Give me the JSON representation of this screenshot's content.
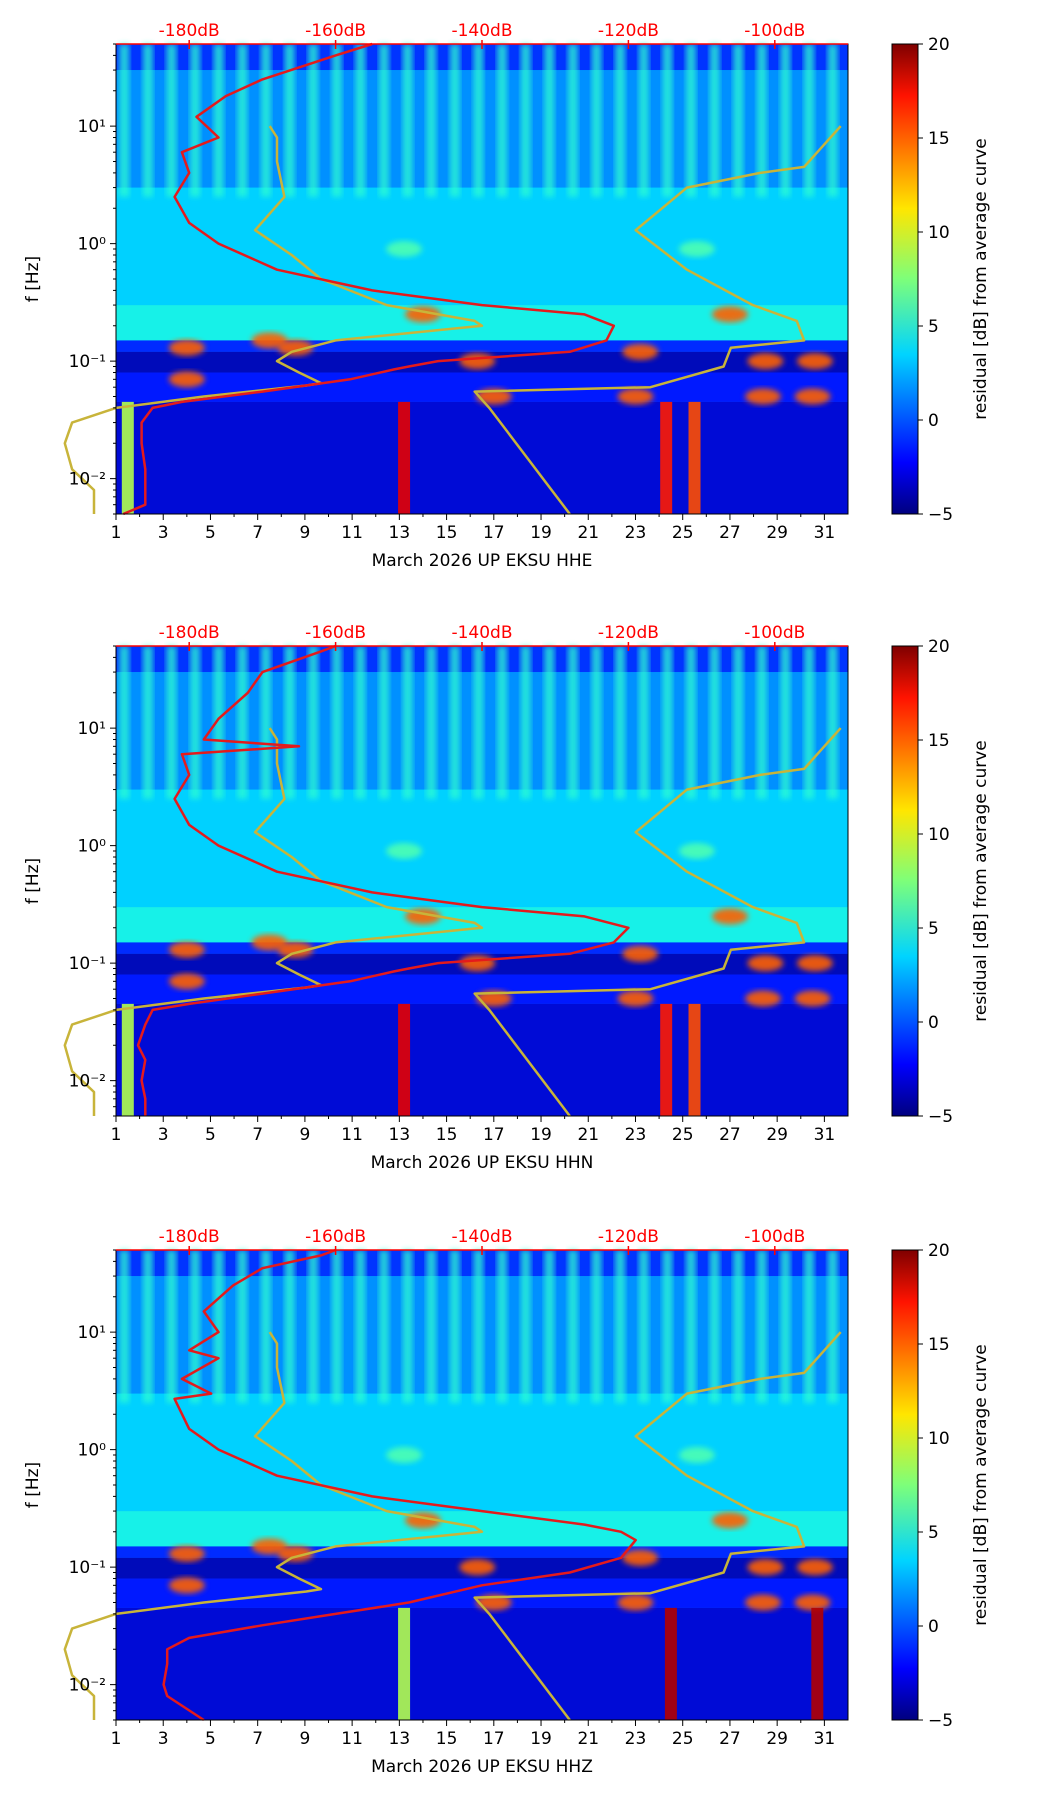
{
  "chart_data": [
    {
      "type": "heatmap",
      "channel": "HHE",
      "xlabel": "March 2026 UP EKSU  HHE",
      "ylabel": "f [Hz]",
      "colorbar_label": "residual [dB] from average curve",
      "x_ticks": [
        "1",
        "3",
        "5",
        "7",
        "9",
        "11",
        "13",
        "15",
        "17",
        "19",
        "21",
        "23",
        "25",
        "27",
        "29",
        "31"
      ],
      "xlim": [
        1,
        32
      ],
      "y_ticks": [
        {
          "value": 0.01,
          "label": "10⁻²"
        },
        {
          "value": 0.1,
          "label": "10⁻¹"
        },
        {
          "value": 1,
          "label": "10⁰"
        },
        {
          "value": 10,
          "label": "10¹"
        }
      ],
      "ylim": [
        0.005,
        50
      ],
      "top_ticks": [
        "-180dB",
        "-160dB",
        "-140dB",
        "-120dB",
        "-100dB"
      ],
      "top_range_db": [
        -190,
        -90
      ],
      "colorbar_ticks": [
        "20",
        "15",
        "10",
        "5",
        "0",
        "−5"
      ],
      "colorbar_range": [
        -5,
        20
      ],
      "red_curve": [
        [
          -189,
          0.005
        ],
        [
          -186,
          0.006
        ],
        [
          -186,
          0.008
        ],
        [
          -186,
          0.012
        ],
        [
          -186.5,
          0.02
        ],
        [
          -186.5,
          0.03
        ],
        [
          -185,
          0.04
        ],
        [
          -181,
          0.045
        ],
        [
          -170,
          0.055
        ],
        [
          -158,
          0.07
        ],
        [
          -152,
          0.085
        ],
        [
          -150,
          0.09
        ],
        [
          -146,
          0.1
        ],
        [
          -128,
          0.12
        ],
        [
          -123,
          0.15
        ],
        [
          -122,
          0.2
        ],
        [
          -126,
          0.25
        ],
        [
          -140,
          0.3
        ],
        [
          -155,
          0.4
        ],
        [
          -168,
          0.6
        ],
        [
          -176,
          1
        ],
        [
          -180,
          1.5
        ],
        [
          -182,
          2.5
        ],
        [
          -180,
          4
        ],
        [
          -181,
          6
        ],
        [
          -176,
          8
        ],
        [
          -179,
          12
        ],
        [
          -175,
          18
        ],
        [
          -170,
          25
        ],
        [
          -160,
          40
        ],
        [
          -155,
          50
        ]
      ],
      "yellow_curve_left_db": [
        [
          -193,
          0.005
        ],
        [
          -193,
          0.008
        ],
        [
          -196,
          0.012
        ],
        [
          -197,
          0.02
        ],
        [
          -196,
          0.03
        ],
        [
          -190,
          0.04
        ],
        [
          -178,
          0.05
        ],
        [
          -164,
          0.062
        ],
        [
          -162,
          0.065
        ],
        [
          -165,
          0.08
        ],
        [
          -168,
          0.1
        ],
        [
          -166,
          0.12
        ],
        [
          -160,
          0.15
        ],
        [
          -140,
          0.2
        ],
        [
          -141,
          0.22
        ],
        [
          -153,
          0.3
        ],
        [
          -162,
          0.5
        ],
        [
          -166,
          0.8
        ],
        [
          -171,
          1.3
        ],
        [
          -167,
          2.5
        ],
        [
          -168,
          5
        ],
        [
          -168,
          8
        ],
        [
          -169,
          10
        ]
      ],
      "yellow_curve_right_db": [
        [
          -128,
          0.005
        ],
        [
          -139,
          0.04
        ],
        [
          -141,
          0.055
        ],
        [
          -117,
          0.06
        ],
        [
          -107,
          0.09
        ],
        [
          -106,
          0.13
        ],
        [
          -96,
          0.15
        ],
        [
          -97,
          0.22
        ],
        [
          -103,
          0.3
        ],
        [
          -112,
          0.6
        ],
        [
          -119,
          1.3
        ],
        [
          -112,
          3
        ],
        [
          -102,
          4
        ],
        [
          -96,
          4.5
        ],
        [
          -91,
          10
        ]
      ]
    },
    {
      "type": "heatmap",
      "channel": "HHN",
      "xlabel": "March 2026 UP EKSU  HHN",
      "ylabel": "f [Hz]",
      "colorbar_label": "residual [dB] from average curve",
      "x_ticks": [
        "1",
        "3",
        "5",
        "7",
        "9",
        "11",
        "13",
        "15",
        "17",
        "19",
        "21",
        "23",
        "25",
        "27",
        "29",
        "31"
      ],
      "xlim": [
        1,
        32
      ],
      "y_ticks": [
        {
          "value": 0.01,
          "label": "10⁻²"
        },
        {
          "value": 0.1,
          "label": "10⁻¹"
        },
        {
          "value": 1,
          "label": "10⁰"
        },
        {
          "value": 10,
          "label": "10¹"
        }
      ],
      "ylim": [
        0.005,
        50
      ],
      "top_ticks": [
        "-180dB",
        "-160dB",
        "-140dB",
        "-120dB",
        "-100dB"
      ],
      "top_range_db": [
        -190,
        -90
      ],
      "colorbar_ticks": [
        "20",
        "15",
        "10",
        "5",
        "0",
        "−5"
      ],
      "colorbar_range": [
        -5,
        20
      ],
      "red_curve": [
        [
          -186,
          0.005
        ],
        [
          -186,
          0.007
        ],
        [
          -186.5,
          0.01
        ],
        [
          -186,
          0.015
        ],
        [
          -187,
          0.02
        ],
        [
          -186,
          0.03
        ],
        [
          -185,
          0.04
        ],
        [
          -180,
          0.045
        ],
        [
          -170,
          0.055
        ],
        [
          -158,
          0.07
        ],
        [
          -152,
          0.085
        ],
        [
          -150,
          0.09
        ],
        [
          -146,
          0.1
        ],
        [
          -128,
          0.12
        ],
        [
          -122,
          0.15
        ],
        [
          -120,
          0.2
        ],
        [
          -126,
          0.25
        ],
        [
          -140,
          0.3
        ],
        [
          -155,
          0.4
        ],
        [
          -168,
          0.6
        ],
        [
          -176,
          1
        ],
        [
          -180,
          1.5
        ],
        [
          -182,
          2.5
        ],
        [
          -180,
          4
        ],
        [
          -181,
          6
        ],
        [
          -165,
          7
        ],
        [
          -178,
          8
        ],
        [
          -176,
          12
        ],
        [
          -172,
          20
        ],
        [
          -170,
          30
        ],
        [
          -162,
          45
        ],
        [
          -160,
          50
        ]
      ],
      "yellow_curve_left_db": [
        [
          -193,
          0.005
        ],
        [
          -193,
          0.008
        ],
        [
          -196,
          0.012
        ],
        [
          -197,
          0.02
        ],
        [
          -196,
          0.03
        ],
        [
          -190,
          0.04
        ],
        [
          -178,
          0.05
        ],
        [
          -164,
          0.062
        ],
        [
          -162,
          0.065
        ],
        [
          -165,
          0.08
        ],
        [
          -168,
          0.1
        ],
        [
          -166,
          0.12
        ],
        [
          -160,
          0.15
        ],
        [
          -140,
          0.2
        ],
        [
          -141,
          0.22
        ],
        [
          -153,
          0.3
        ],
        [
          -162,
          0.5
        ],
        [
          -166,
          0.8
        ],
        [
          -171,
          1.3
        ],
        [
          -167,
          2.5
        ],
        [
          -168,
          5
        ],
        [
          -168,
          8
        ],
        [
          -169,
          10
        ]
      ],
      "yellow_curve_right_db": [
        [
          -128,
          0.005
        ],
        [
          -139,
          0.04
        ],
        [
          -141,
          0.055
        ],
        [
          -117,
          0.06
        ],
        [
          -107,
          0.09
        ],
        [
          -106,
          0.13
        ],
        [
          -96,
          0.15
        ],
        [
          -97,
          0.22
        ],
        [
          -103,
          0.3
        ],
        [
          -112,
          0.6
        ],
        [
          -119,
          1.3
        ],
        [
          -112,
          3
        ],
        [
          -102,
          4
        ],
        [
          -96,
          4.5
        ],
        [
          -91,
          10
        ]
      ]
    },
    {
      "type": "heatmap",
      "channel": "HHZ",
      "xlabel": "March 2026 UP EKSU  HHZ",
      "ylabel": "f [Hz]",
      "colorbar_label": "residual [dB] from average curve",
      "x_ticks": [
        "1",
        "3",
        "5",
        "7",
        "9",
        "11",
        "13",
        "15",
        "17",
        "19",
        "21",
        "23",
        "25",
        "27",
        "29",
        "31"
      ],
      "xlim": [
        1,
        32
      ],
      "y_ticks": [
        {
          "value": 0.01,
          "label": "10⁻²"
        },
        {
          "value": 0.1,
          "label": "10⁻¹"
        },
        {
          "value": 1,
          "label": "10⁰"
        },
        {
          "value": 10,
          "label": "10¹"
        }
      ],
      "ylim": [
        0.005,
        50
      ],
      "top_ticks": [
        "-180dB",
        "-160dB",
        "-140dB",
        "-120dB",
        "-100dB"
      ],
      "top_range_db": [
        -190,
        -90
      ],
      "colorbar_ticks": [
        "20",
        "15",
        "10",
        "5",
        "0",
        "−5"
      ],
      "colorbar_range": [
        -5,
        20
      ],
      "red_curve": [
        [
          -178,
          0.005
        ],
        [
          -183,
          0.008
        ],
        [
          -183.5,
          0.01
        ],
        [
          -183,
          0.015
        ],
        [
          -183,
          0.02
        ],
        [
          -180,
          0.025
        ],
        [
          -170,
          0.032
        ],
        [
          -160,
          0.04
        ],
        [
          -150,
          0.05
        ],
        [
          -140,
          0.07
        ],
        [
          -128,
          0.09
        ],
        [
          -121,
          0.12
        ],
        [
          -119,
          0.17
        ],
        [
          -121,
          0.2
        ],
        [
          -126,
          0.23
        ],
        [
          -140,
          0.3
        ],
        [
          -155,
          0.4
        ],
        [
          -168,
          0.6
        ],
        [
          -176,
          1
        ],
        [
          -180,
          1.5
        ],
        [
          -182,
          2.7
        ],
        [
          -177,
          3
        ],
        [
          -181,
          4
        ],
        [
          -176,
          6
        ],
        [
          -180,
          7
        ],
        [
          -176,
          10
        ],
        [
          -178,
          15
        ],
        [
          -174,
          25
        ],
        [
          -170,
          35
        ],
        [
          -162,
          45
        ],
        [
          -160,
          50
        ]
      ],
      "yellow_curve_left_db": [
        [
          -193,
          0.005
        ],
        [
          -193,
          0.008
        ],
        [
          -196,
          0.012
        ],
        [
          -197,
          0.02
        ],
        [
          -196,
          0.03
        ],
        [
          -190,
          0.04
        ],
        [
          -178,
          0.05
        ],
        [
          -164,
          0.062
        ],
        [
          -162,
          0.065
        ],
        [
          -165,
          0.08
        ],
        [
          -168,
          0.1
        ],
        [
          -166,
          0.12
        ],
        [
          -160,
          0.15
        ],
        [
          -140,
          0.2
        ],
        [
          -141,
          0.22
        ],
        [
          -153,
          0.3
        ],
        [
          -162,
          0.5
        ],
        [
          -166,
          0.8
        ],
        [
          -171,
          1.3
        ],
        [
          -167,
          2.5
        ],
        [
          -168,
          5
        ],
        [
          -168,
          8
        ],
        [
          -169,
          10
        ]
      ],
      "yellow_curve_right_db": [
        [
          -128,
          0.005
        ],
        [
          -139,
          0.04
        ],
        [
          -141,
          0.055
        ],
        [
          -117,
          0.06
        ],
        [
          -107,
          0.09
        ],
        [
          -106,
          0.13
        ],
        [
          -96,
          0.15
        ],
        [
          -97,
          0.22
        ],
        [
          -103,
          0.3
        ],
        [
          -112,
          0.6
        ],
        [
          -119,
          1.3
        ],
        [
          -112,
          3
        ],
        [
          -102,
          4
        ],
        [
          -96,
          4.5
        ],
        [
          -91,
          10
        ]
      ]
    }
  ],
  "colors": {
    "top_axis": "#ff0000",
    "red_curve": "#e41a1c",
    "yellow_curve": "#c8b43a"
  }
}
